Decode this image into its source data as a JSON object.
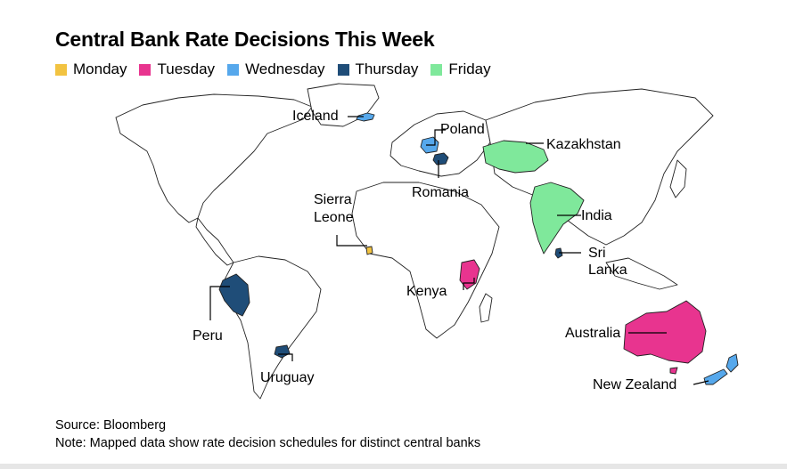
{
  "title": "Central Bank Rate Decisions This Week",
  "legend": [
    {
      "day": "Monday",
      "color": "#f2c341"
    },
    {
      "day": "Tuesday",
      "color": "#e8348f"
    },
    {
      "day": "Wednesday",
      "color": "#56a8ec"
    },
    {
      "day": "Thursday",
      "color": "#1f4d78"
    },
    {
      "day": "Friday",
      "color": "#7fe89b"
    }
  ],
  "countries": {
    "iceland": {
      "name": "Iceland",
      "day": "Wednesday"
    },
    "poland": {
      "name": "Poland",
      "day": "Wednesday"
    },
    "kazakhstan": {
      "name": "Kazakhstan",
      "day": "Friday"
    },
    "romania": {
      "name": "Romania",
      "day": "Thursday"
    },
    "sierra_leone": {
      "name_line1": "Sierra",
      "name_line2": "Leone",
      "day": "Monday"
    },
    "india": {
      "name": "India",
      "day": "Friday"
    },
    "sri_lanka": {
      "name_line1": "Sri",
      "name_line2": "Lanka",
      "day": "Thursday"
    },
    "kenya": {
      "name": "Kenya",
      "day": "Tuesday"
    },
    "peru": {
      "name": "Peru",
      "day": "Thursday"
    },
    "uruguay": {
      "name": "Uruguay",
      "day": "Thursday"
    },
    "australia": {
      "name": "Australia",
      "day": "Tuesday"
    },
    "new_zealand": {
      "name": "New Zealand",
      "day": "Wednesday"
    }
  },
  "footer": {
    "source": "Source: Bloomberg",
    "note": "Note: Mapped data show rate decision schedules for distinct central banks"
  }
}
